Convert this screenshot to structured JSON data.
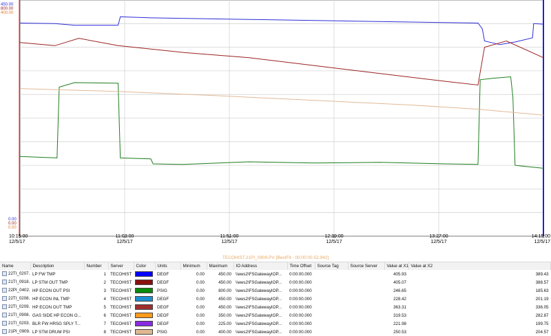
{
  "axis_scales": [
    {
      "top": "450.00",
      "bottom": "0.00",
      "color": "#2b2bd6"
    },
    {
      "top": "800.00",
      "bottom": "0.00",
      "color": "#9a2020"
    },
    {
      "top": "400.00",
      "bottom": "0.00",
      "color": "#e07a30"
    }
  ],
  "time_ticks": [
    {
      "time": "10:15:00",
      "date": "12/5/17"
    },
    {
      "time": "11:03:00",
      "date": "12/5/17"
    },
    {
      "time": "11:51:00",
      "date": "12/5/17"
    },
    {
      "time": "12:39:00",
      "date": "12/5/17"
    },
    {
      "time": "13:27:00",
      "date": "12/5/17"
    },
    {
      "time": "14:15:00",
      "date": "12/5/17"
    }
  ],
  "status_text": "TECOHIST.21PI_0909.PV [BestFit - 00:00:00.52.942]",
  "table": {
    "headers": [
      "Name",
      "Description",
      "Number",
      "Server",
      "Color",
      "Units",
      "Minimum",
      "Maximum",
      "IO Address",
      "Time Offset",
      "Source Tag",
      "Source Server",
      "Value at X1",
      "Value at X2"
    ],
    "rows": [
      {
        "name": "22TI_0207....",
        "description": "LP FW TMP",
        "number": "1",
        "server": "TECOHIST",
        "color": "#0000ff",
        "units": "DEGF",
        "minimum": "0.00",
        "maximum": "450.00",
        "io_address": "\\\\ews2\\FSGatewayIOP...",
        "time_offset": "0:00:00.000",
        "source_tag": "",
        "source_server": "",
        "value_x1": "405.93",
        "value_x2": "389.43"
      },
      {
        "name": "21TI_0918....",
        "description": "LP STM OUT TMP",
        "number": "2",
        "server": "TECOHIST",
        "color": "#8b0f0f",
        "units": "DEGF",
        "minimum": "0.00",
        "maximum": "450.00",
        "io_address": "\\\\ews2\\FSGatewayIOP...",
        "time_offset": "0:00:00.000",
        "source_tag": "",
        "source_server": "",
        "value_x1": "405.07",
        "value_x2": "388.57"
      },
      {
        "name": "22PI_0402....",
        "description": "HP ECON OUT PSI",
        "number": "3",
        "server": "TECOHIST",
        "color": "#0a8a0a",
        "units": "PSIG",
        "minimum": "0.00",
        "maximum": "800.00",
        "io_address": "\\\\ews2\\FSGatewayIOP...",
        "time_offset": "0:00:00.000",
        "source_tag": "",
        "source_server": "",
        "value_x1": "246.65",
        "value_x2": "185.63"
      },
      {
        "name": "22TI_0208....",
        "description": "HP ECON INL TMP",
        "number": "4",
        "server": "TECOHIST",
        "color": "#1d8fcf",
        "units": "DEGF",
        "minimum": "0.00",
        "maximum": "450.00",
        "io_address": "\\\\ews2\\FSGatewayIOP...",
        "time_offset": "0:00:00.000",
        "source_tag": "",
        "source_server": "",
        "value_x1": "228.42",
        "value_x2": "201.19"
      },
      {
        "name": "22TI_0209....",
        "description": "HP ECON OUT TMP",
        "number": "5",
        "server": "TECOHIST",
        "color": "#9e2f2f",
        "units": "DEGF",
        "minimum": "0.00",
        "maximum": "450.00",
        "io_address": "\\\\ews2\\FSGatewayIOP...",
        "time_offset": "0:00:00.000",
        "source_tag": "",
        "source_server": "",
        "value_x1": "363.31",
        "value_x2": "336.05"
      },
      {
        "name": "21TI_0908....",
        "description": "GAS SIDE HP ECON O...",
        "number": "6",
        "server": "TECOHIST",
        "color": "#ff9a1a",
        "units": "DEGF",
        "minimum": "0.00",
        "maximum": "350.00",
        "io_address": "\\\\ews2\\FSGatewayIOP...",
        "time_offset": "0:00:00.000",
        "source_tag": "",
        "source_server": "",
        "value_x1": "319.53",
        "value_x2": "282.87"
      },
      {
        "name": "21TI_0203....",
        "description": "BLR FW HRSG SPLY T...",
        "number": "7",
        "server": "TECOHIST",
        "color": "#8a2be2",
        "units": "DEGF",
        "minimum": "0.00",
        "maximum": "225.00",
        "io_address": "\\\\ews2\\FSGatewayIOP...",
        "time_offset": "0:00:00.000",
        "source_tag": "",
        "source_server": "",
        "value_x1": "221.98",
        "value_x2": "199.75"
      },
      {
        "name": "21PI_0909....",
        "description": "LP STM DRUM PSI",
        "number": "8",
        "server": "TECOHIST",
        "color": "#e0b890",
        "units": "PSIG",
        "minimum": "0.00",
        "maximum": "400.00",
        "io_address": "\\\\ews2\\FSGatewayIOP...",
        "time_offset": "0:00:00.000",
        "source_tag": "",
        "source_server": "",
        "value_x1": "250.53",
        "value_x2": "204.57"
      }
    ]
  },
  "chart_data": {
    "type": "line",
    "x_unit": "minutes",
    "xlim": [
      "10:15:00",
      "14:15:00"
    ],
    "grid": true,
    "series": [
      {
        "name": "LP FW TMP",
        "color": "#2b2bd6",
        "ylim": [
          0,
          450
        ],
        "points": [
          [
            "10:15:00",
            406
          ],
          [
            "10:31:00",
            405
          ],
          [
            "10:40:00",
            402
          ],
          [
            "11:00:00",
            402
          ],
          [
            "11:01:00",
            418
          ],
          [
            "11:15:00",
            416
          ],
          [
            "12:00:00",
            413
          ],
          [
            "12:45:00",
            410
          ],
          [
            "13:30:00",
            407
          ],
          [
            "13:45:00",
            406
          ],
          [
            "13:47:00",
            395
          ],
          [
            "13:48:00",
            372
          ],
          [
            "13:55:00",
            365
          ],
          [
            "14:02:00",
            370
          ],
          [
            "14:10:00",
            378
          ],
          [
            "14:10:30",
            405
          ],
          [
            "14:15:00",
            404
          ]
        ]
      },
      {
        "name": "LP STM OUT TMP",
        "color": "#9a2020",
        "ylim": [
          0,
          450
        ],
        "points": [
          [
            "10:15:00",
            369
          ],
          [
            "10:31:00",
            363
          ],
          [
            "10:42:00",
            377
          ],
          [
            "11:00:00",
            363
          ],
          [
            "11:30:00",
            350
          ],
          [
            "12:00:00",
            340
          ],
          [
            "12:30:00",
            325
          ],
          [
            "13:00:00",
            310
          ],
          [
            "13:30:00",
            295
          ],
          [
            "13:45:00",
            288
          ],
          [
            "13:48:00",
            360
          ],
          [
            "13:58:00",
            372
          ],
          [
            "14:15:00",
            340
          ]
        ]
      },
      {
        "name": "HP ECON OUT PSI",
        "color": "#1c7c1c",
        "ylim": [
          0,
          800
        ],
        "points": [
          [
            "10:15:00",
            270
          ],
          [
            "10:32:00",
            265
          ],
          [
            "10:33:00",
            505
          ],
          [
            "10:40:00",
            520
          ],
          [
            "11:00:00",
            518
          ],
          [
            "11:01:00",
            265
          ],
          [
            "11:15:00",
            262
          ],
          [
            "11:16:00",
            245
          ],
          [
            "11:30:00",
            243
          ],
          [
            "12:00:00",
            252
          ],
          [
            "12:30:00",
            248
          ],
          [
            "13:00:00",
            250
          ],
          [
            "13:30:00",
            245
          ],
          [
            "13:45:00",
            243
          ],
          [
            "13:46:00",
            530
          ],
          [
            "13:52:00",
            535
          ],
          [
            "14:00:00",
            540
          ],
          [
            "14:01:00",
            470
          ],
          [
            "14:02:00",
            240
          ],
          [
            "14:15:00",
            230
          ]
        ]
      },
      {
        "name": "LP STM DRUM PSI",
        "color": "#e2b896",
        "ylim": [
          0,
          400
        ],
        "points": [
          [
            "10:15:00",
            250
          ],
          [
            "11:00:00",
            245
          ],
          [
            "11:45:00",
            238
          ],
          [
            "12:30:00",
            230
          ],
          [
            "13:15:00",
            222
          ],
          [
            "13:45:00",
            215
          ],
          [
            "14:15:00",
            205
          ]
        ]
      }
    ]
  }
}
